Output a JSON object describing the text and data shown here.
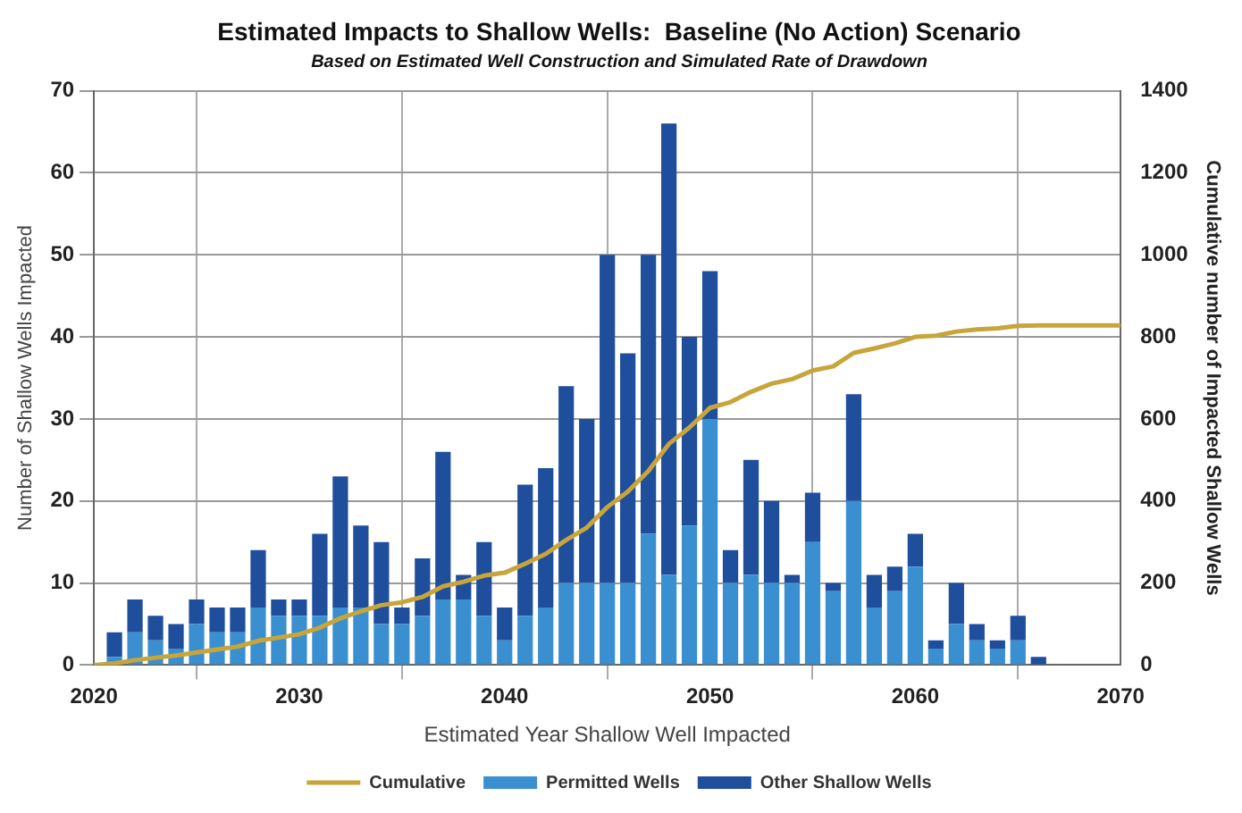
{
  "chart_data": {
    "type": "bar",
    "title": "Estimated Impacts to Shallow Wells:  Baseline (No Action) Scenario",
    "subtitle": "Based on Estimated Well Construction and Simulated Rate of Drawdown",
    "xlabel": "Estimated Year Shallow Well Impacted",
    "ylabel": "Number of Shallow Wells Impacted",
    "y2label": "Cumulative number of Impacted Shallow Wells",
    "x": [
      2021,
      2022,
      2023,
      2024,
      2025,
      2026,
      2027,
      2028,
      2029,
      2030,
      2031,
      2032,
      2033,
      2034,
      2035,
      2036,
      2037,
      2038,
      2039,
      2040,
      2041,
      2042,
      2043,
      2044,
      2045,
      2046,
      2047,
      2048,
      2049,
      2050,
      2051,
      2052,
      2053,
      2054,
      2055,
      2056,
      2057,
      2058,
      2059,
      2060,
      2061,
      2062,
      2063,
      2064,
      2065,
      2066
    ],
    "stacked": true,
    "series": [
      {
        "name": "Permitted Wells",
        "color": "#3a8fd0",
        "values": [
          1,
          4,
          3,
          2,
          5,
          4,
          4,
          7,
          6,
          6,
          6,
          7,
          7,
          5,
          5,
          6,
          8,
          8,
          6,
          3,
          6,
          7,
          10,
          10,
          10,
          10,
          16,
          11,
          17,
          30,
          10,
          11,
          10,
          10,
          15,
          9,
          20,
          7,
          9,
          12,
          2,
          5,
          3,
          2,
          3,
          0
        ]
      },
      {
        "name": "Other Shallow Wells",
        "color": "#1f4e9c",
        "values": [
          3,
          4,
          3,
          3,
          3,
          3,
          3,
          7,
          2,
          2,
          10,
          16,
          10,
          10,
          2,
          7,
          18,
          3,
          9,
          4,
          16,
          17,
          24,
          20,
          40,
          28,
          34,
          55,
          23,
          18,
          4,
          14,
          10,
          1,
          6,
          1,
          13,
          4,
          3,
          4,
          1,
          5,
          2,
          1,
          3,
          1
        ]
      },
      {
        "name": "Cumulative",
        "type": "line",
        "axis": "y2",
        "color": "#c8a53a",
        "x": [
          2020,
          2021,
          2022,
          2023,
          2024,
          2025,
          2026,
          2027,
          2028,
          2029,
          2030,
          2031,
          2032,
          2033,
          2034,
          2035,
          2036,
          2037,
          2038,
          2039,
          2040,
          2041,
          2042,
          2043,
          2044,
          2045,
          2046,
          2047,
          2048,
          2049,
          2050,
          2051,
          2052,
          2053,
          2054,
          2055,
          2056,
          2057,
          2058,
          2059,
          2060,
          2061,
          2062,
          2063,
          2064,
          2065,
          2066,
          2070
        ],
        "values": [
          0,
          4,
          12,
          18,
          23,
          31,
          38,
          45,
          59,
          67,
          75,
          91,
          114,
          131,
          146,
          153,
          166,
          192,
          203,
          218,
          225,
          247,
          271,
          305,
          335,
          385,
          423,
          473,
          539,
          579,
          627,
          641,
          666,
          686,
          697,
          718,
          728,
          761,
          772,
          784,
          800,
          803,
          813,
          818,
          821,
          827,
          828,
          828
        ]
      }
    ],
    "xlim": [
      2020,
      2070
    ],
    "xticks": [
      2020,
      2030,
      2040,
      2050,
      2060,
      2070
    ],
    "ylim": [
      0,
      70
    ],
    "yticks": [
      0,
      10,
      20,
      30,
      40,
      50,
      60,
      70
    ],
    "y2lim": [
      0,
      1400
    ],
    "y2ticks": [
      0,
      200,
      400,
      600,
      800,
      1000,
      1200,
      1400
    ],
    "grid": true,
    "legend": "bottom",
    "marker": "none"
  }
}
